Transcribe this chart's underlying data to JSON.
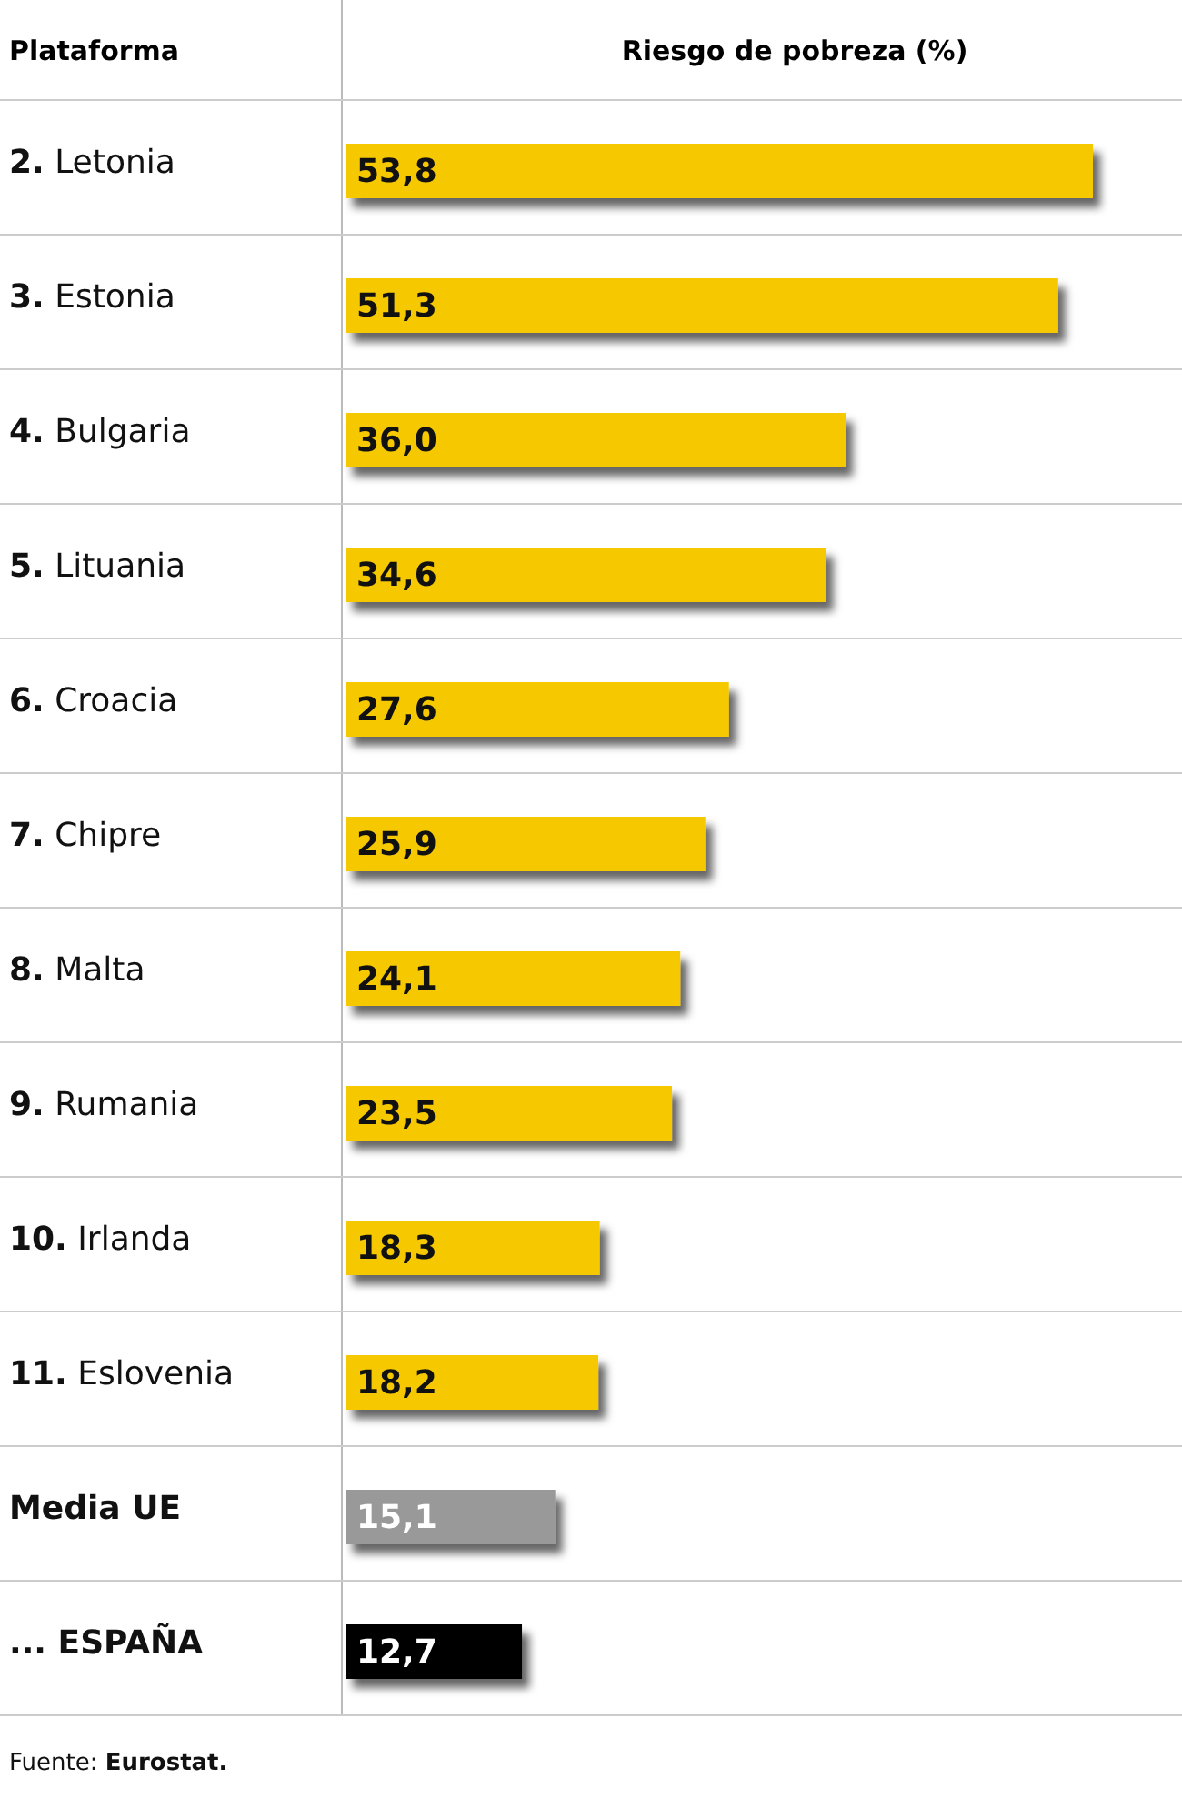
{
  "chart_data": {
    "type": "bar",
    "orientation": "horizontal",
    "ylabel": "Plataforma",
    "xlabel": "Riesgo de pobreza (%)",
    "categories": [
      "2. Letonia",
      "3. Estonia",
      "4. Bulgaria",
      "5. Lituania",
      "6. Croacia",
      "7. Chipre",
      "8. Malta",
      "9. Rumania",
      "10. Irlanda",
      "11. Eslovenia",
      "Media UE",
      "... ESPAÑA"
    ],
    "values": [
      53.8,
      51.3,
      36.0,
      34.6,
      27.6,
      25.9,
      24.1,
      23.5,
      18.3,
      18.2,
      15.1,
      12.7
    ],
    "value_labels": [
      "53,8",
      "51,3",
      "36,0",
      "34,6",
      "27,6",
      "25,9",
      "24,1",
      "23,5",
      "18,3",
      "18,2",
      "15,1",
      "12,7"
    ],
    "colors": [
      "#f5c800",
      "#f5c800",
      "#f5c800",
      "#f5c800",
      "#f5c800",
      "#f5c800",
      "#f5c800",
      "#f5c800",
      "#f5c800",
      "#f5c800",
      "#999999",
      "#000000"
    ],
    "annotations": [
      "Fuente: Eurostat."
    ]
  }
}
